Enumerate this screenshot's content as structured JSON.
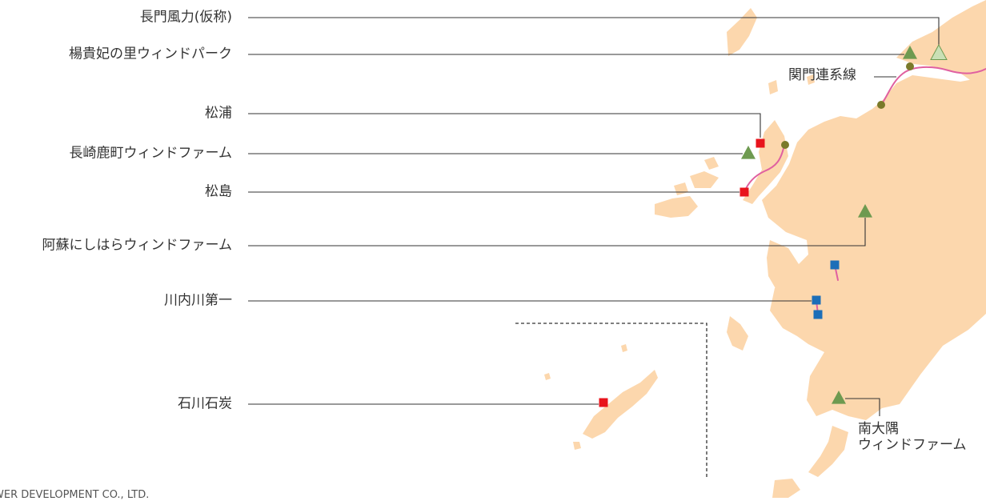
{
  "map": {
    "colors": {
      "land": "#fcd7ad",
      "leader_line": "#333333",
      "wind": "#6e9a50",
      "wind_planned": "#c9e0b5",
      "thermal": "#e8141c",
      "hydro": "#1c6eb8",
      "substation": "#7a7a2a",
      "transmission": "#e060a0"
    },
    "plants": [
      {
        "id": "nagato",
        "name": "長門風力(仮称)",
        "type": "wind-planned",
        "icon": "triangle-outline-icon"
      },
      {
        "id": "yokihi",
        "name": "楊貴妃の里ウィンドパーク",
        "type": "wind",
        "icon": "triangle-icon"
      },
      {
        "id": "matsuura",
        "name": "松浦",
        "type": "thermal",
        "icon": "square-icon"
      },
      {
        "id": "shikamachi",
        "name": "長崎鹿町ウィンドファーム",
        "type": "wind",
        "icon": "triangle-icon"
      },
      {
        "id": "matsushima",
        "name": "松島",
        "type": "thermal",
        "icon": "square-icon"
      },
      {
        "id": "aso",
        "name": "阿蘇にしはらウィンドファーム",
        "type": "wind",
        "icon": "triangle-icon"
      },
      {
        "id": "sendai",
        "name": "川内川第一",
        "type": "hydro",
        "icon": "square-icon"
      },
      {
        "id": "ishikawa",
        "name": "石川石炭",
        "type": "thermal",
        "icon": "square-icon"
      }
    ],
    "kanmon": "関門連系線",
    "osumi": [
      "南大隅",
      "ウィンドファーム"
    ],
    "footer": "WER DEVELOPMENT CO., LTD."
  }
}
